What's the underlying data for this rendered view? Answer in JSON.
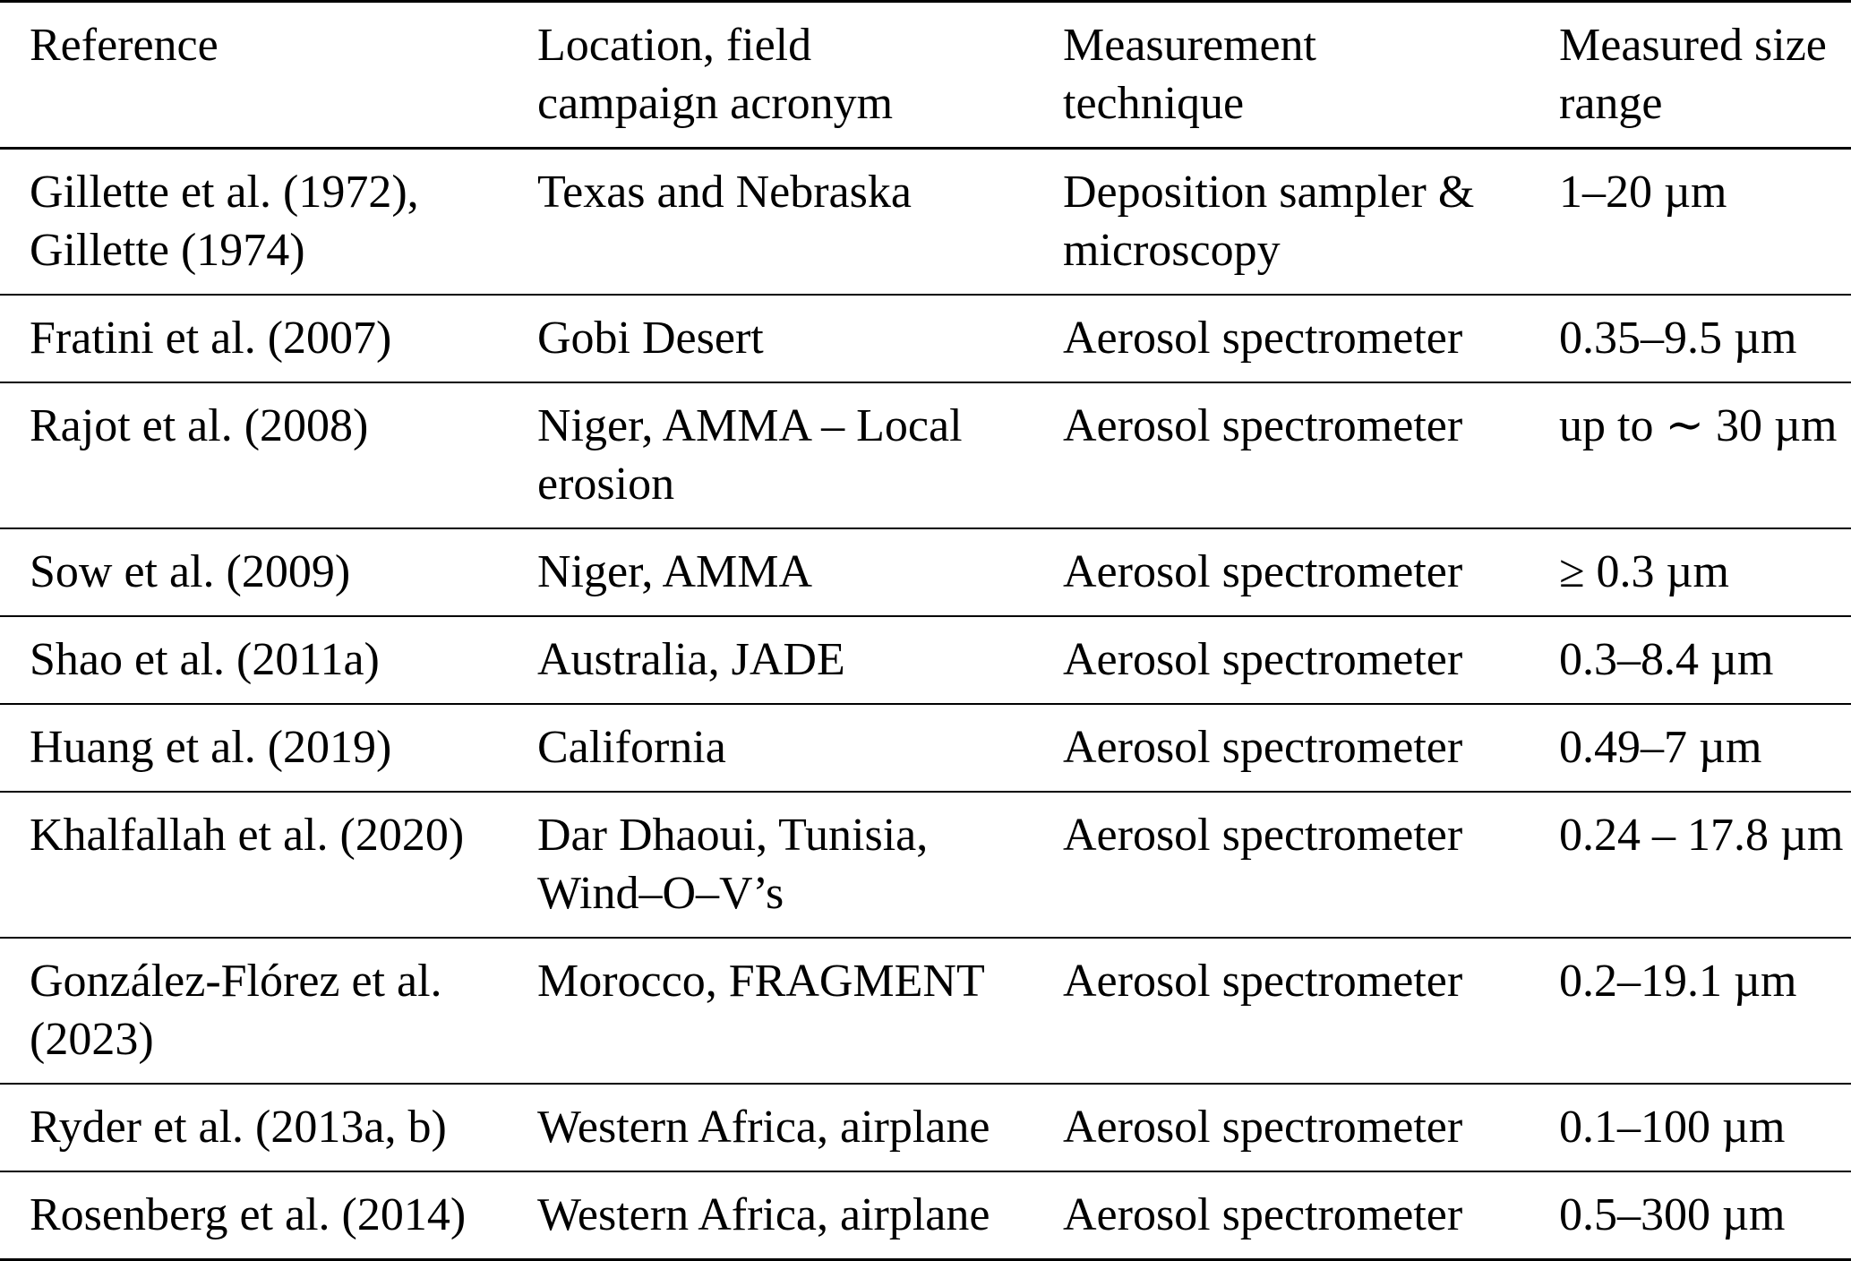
{
  "table": {
    "columns": [
      {
        "label": "Reference"
      },
      {
        "label": "Location, field\ncampaign acronym"
      },
      {
        "label": "Measurement\ntechnique"
      },
      {
        "label": "Measured size\nrange"
      }
    ],
    "rows": [
      {
        "reference": "Gillette et al. (1972),\nGillette (1974)",
        "location": "Texas and Nebraska",
        "technique": "Deposition sampler &\nmicroscopy",
        "size_range": "1–20 µm"
      },
      {
        "reference": "Fratini et al. (2007)",
        "location": "Gobi Desert",
        "technique": "Aerosol spectrometer",
        "size_range": "0.35–9.5 µm"
      },
      {
        "reference": "Rajot et al. (2008)",
        "location": "Niger, AMMA – Local\nerosion",
        "technique": "Aerosol spectrometer",
        "size_range": "up to ∼ 30 µm"
      },
      {
        "reference": "Sow et al. (2009)",
        "location": "Niger, AMMA",
        "technique": "Aerosol spectrometer",
        "size_range": "≥ 0.3 µm"
      },
      {
        "reference": "Shao et al. (2011a)",
        "location": "Australia, JADE",
        "technique": "Aerosol spectrometer",
        "size_range": "0.3–8.4 µm"
      },
      {
        "reference": "Huang et al. (2019)",
        "location": "California",
        "technique": "Aerosol spectrometer",
        "size_range": "0.49–7 µm"
      },
      {
        "reference": "Khalfallah et al. (2020)",
        "location": "Dar Dhaoui, Tunisia,\nWind–O–V’s",
        "technique": "Aerosol spectrometer",
        "size_range": "0.24 – 17.8 µm"
      },
      {
        "reference": "González-Flórez et al.\n(2023)",
        "location": "Morocco, FRAGMENT",
        "technique": "Aerosol spectrometer",
        "size_range": "0.2–19.1 µm"
      },
      {
        "reference": "Ryder et al. (2013a, b)",
        "location": "Western Africa, airplane",
        "technique": "Aerosol spectrometer",
        "size_range": "0.1–100 µm"
      },
      {
        "reference": "Rosenberg et al. (2014)",
        "location": "Western Africa, airplane",
        "technique": "Aerosol spectrometer",
        "size_range": "0.5–300 µm"
      }
    ]
  }
}
